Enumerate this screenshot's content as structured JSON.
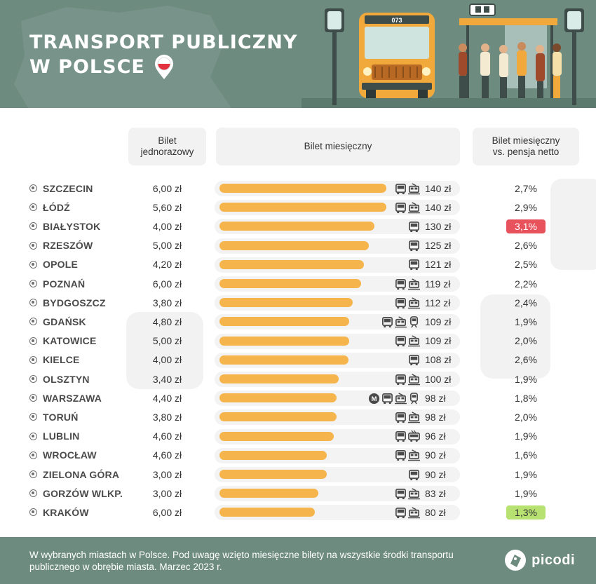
{
  "header": {
    "title_line1": "TRANSPORT PUBLICZNY",
    "title_line2": "W POLSCE",
    "bus_number": "073"
  },
  "columns": {
    "single": "Bilet\njednorazowy",
    "monthly": "Bilet miesięczny",
    "ratio": "Bilet miesięczny\nvs. pensja netto"
  },
  "chart_data": {
    "type": "bar",
    "title": "TRANSPORT PUBLICZNY W POLSCE",
    "xlabel": "",
    "ylabel": "Bilet miesięczny",
    "ylim": [
      0,
      150
    ],
    "categories": [
      "SZCZECIN",
      "ŁÓDŹ",
      "BIAŁYSTOK",
      "RZESZÓW",
      "OPOLE",
      "POZNAŃ",
      "BYDGOSZCZ",
      "GDAŃSK",
      "KATOWICE",
      "KIELCE",
      "OLSZTYN",
      "WARSZAWA",
      "TORUŃ",
      "LUBLIN",
      "WROCŁAW",
      "ZIELONA GÓRA",
      "GORZÓW WLKP.",
      "KRAKÓW"
    ],
    "values": [
      140,
      140,
      130,
      125,
      121,
      119,
      112,
      109,
      109,
      108,
      100,
      98,
      98,
      96,
      90,
      90,
      83,
      80
    ],
    "rows": [
      {
        "city": "SZCZECIN",
        "single": "6,00 zł",
        "monthly": 140,
        "price": "140 zł",
        "ratio": "2,7%",
        "highlight": "",
        "modes": [
          "bus",
          "tram"
        ]
      },
      {
        "city": "ŁÓDŹ",
        "single": "5,60 zł",
        "monthly": 140,
        "price": "140 zł",
        "ratio": "2,9%",
        "highlight": "",
        "modes": [
          "bus",
          "tram"
        ]
      },
      {
        "city": "BIAŁYSTOK",
        "single": "4,00 zł",
        "monthly": 130,
        "price": "130 zł",
        "ratio": "3,1%",
        "highlight": "high",
        "modes": [
          "bus"
        ]
      },
      {
        "city": "RZESZÓW",
        "single": "5,00 zł",
        "monthly": 125,
        "price": "125 zł",
        "ratio": "2,6%",
        "highlight": "",
        "modes": [
          "bus"
        ]
      },
      {
        "city": "OPOLE",
        "single": "4,20 zł",
        "monthly": 121,
        "price": "121 zł",
        "ratio": "2,5%",
        "highlight": "",
        "modes": [
          "bus"
        ]
      },
      {
        "city": "POZNAŃ",
        "single": "6,00 zł",
        "monthly": 119,
        "price": "119 zł",
        "ratio": "2,2%",
        "highlight": "",
        "modes": [
          "bus",
          "tram"
        ]
      },
      {
        "city": "BYDGOSZCZ",
        "single": "3,80 zł",
        "monthly": 112,
        "price": "112 zł",
        "ratio": "2,4%",
        "highlight": "",
        "modes": [
          "bus",
          "tram"
        ]
      },
      {
        "city": "GDAŃSK",
        "single": "4,80 zł",
        "monthly": 109,
        "price": "109 zł",
        "ratio": "1,9%",
        "highlight": "",
        "modes": [
          "bus",
          "tram",
          "train"
        ]
      },
      {
        "city": "KATOWICE",
        "single": "5,00 zł",
        "monthly": 109,
        "price": "109 zł",
        "ratio": "2,0%",
        "highlight": "",
        "modes": [
          "bus",
          "tram"
        ]
      },
      {
        "city": "KIELCE",
        "single": "4,00 zł",
        "monthly": 108,
        "price": "108 zł",
        "ratio": "2,6%",
        "highlight": "",
        "modes": [
          "bus"
        ]
      },
      {
        "city": "OLSZTYN",
        "single": "3,40 zł",
        "monthly": 100,
        "price": "100 zł",
        "ratio": "1,9%",
        "highlight": "",
        "modes": [
          "bus",
          "tram"
        ]
      },
      {
        "city": "WARSZAWA",
        "single": "4,40 zł",
        "monthly": 98,
        "price": "98 zł",
        "ratio": "1,8%",
        "highlight": "",
        "modes": [
          "metro",
          "bus",
          "tram",
          "train"
        ]
      },
      {
        "city": "TORUŃ",
        "single": "3,80 zł",
        "monthly": 98,
        "price": "98 zł",
        "ratio": "2,0%",
        "highlight": "",
        "modes": [
          "bus",
          "tram"
        ]
      },
      {
        "city": "LUBLIN",
        "single": "4,60 zł",
        "monthly": 96,
        "price": "96 zł",
        "ratio": "1,9%",
        "highlight": "",
        "modes": [
          "bus",
          "trolleybus"
        ]
      },
      {
        "city": "WROCŁAW",
        "single": "4,60 zł",
        "monthly": 90,
        "price": "90 zł",
        "ratio": "1,6%",
        "highlight": "",
        "modes": [
          "bus",
          "tram"
        ]
      },
      {
        "city": "ZIELONA GÓRA",
        "single": "3,00 zł",
        "monthly": 90,
        "price": "90 zł",
        "ratio": "1,9%",
        "highlight": "",
        "modes": [
          "bus"
        ]
      },
      {
        "city": "GORZÓW WLKP.",
        "single": "3,00 zł",
        "monthly": 83,
        "price": "83 zł",
        "ratio": "1,9%",
        "highlight": "",
        "modes": [
          "bus",
          "tram"
        ]
      },
      {
        "city": "KRAKÓW",
        "single": "6,00 zł",
        "monthly": 80,
        "price": "80 zł",
        "ratio": "1,3%",
        "highlight": "low",
        "modes": [
          "bus",
          "tram"
        ]
      }
    ]
  },
  "colors": {
    "header_bg": "#6e8b80",
    "bar": "#f5b54c",
    "track": "#f3f3f3",
    "high": "#e8525c",
    "low": "#b7e272"
  },
  "footer": {
    "note": "W wybranych miastach w Polsce. Pod uwagę wzięto miesięczne bilety na wszystkie środki transportu publicznego w obrębie miasta. Marzec 2023 r.",
    "brand": "picodi"
  }
}
